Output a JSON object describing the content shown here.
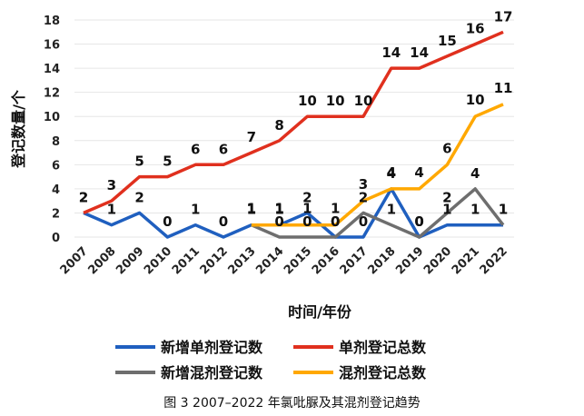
{
  "chart_data": {
    "type": "line",
    "caption": "图 3  2007–2022 年氯吡脲及其混剂登记趋势",
    "xlabel": "时间/年份",
    "ylabel": "登记数量/个",
    "x": [
      "2007",
      "2008",
      "2009",
      "2010",
      "2011",
      "2012",
      "2013",
      "2014",
      "2015",
      "2016",
      "2017",
      "2018",
      "2019",
      "2020",
      "2021",
      "2022"
    ],
    "ylim": [
      0,
      18
    ],
    "yticks": [
      0,
      2,
      4,
      6,
      8,
      10,
      12,
      14,
      16,
      18
    ],
    "legend_position": "bottom",
    "series": [
      {
        "name": "新增单剂登记数",
        "color": "#1f5fbf",
        "values": [
          2,
          1,
          2,
          0,
          1,
          0,
          1,
          1,
          2,
          0,
          0,
          4,
          0,
          1,
          1,
          1
        ]
      },
      {
        "name": "单剂登记总数",
        "color": "#e0301e",
        "values": [
          2,
          3,
          5,
          5,
          6,
          6,
          7,
          8,
          10,
          10,
          10,
          14,
          14,
          15,
          16,
          17
        ]
      },
      {
        "name": "新增混剂登记数",
        "color": "#6e6e6e",
        "values": [
          null,
          null,
          null,
          null,
          null,
          null,
          1,
          0,
          0,
          0,
          2,
          1,
          0,
          2,
          4,
          1
        ]
      },
      {
        "name": "混剂登记总数",
        "color": "#ffa800",
        "values": [
          null,
          null,
          null,
          null,
          null,
          null,
          1,
          1,
          1,
          1,
          3,
          4,
          4,
          6,
          10,
          11
        ]
      }
    ]
  }
}
